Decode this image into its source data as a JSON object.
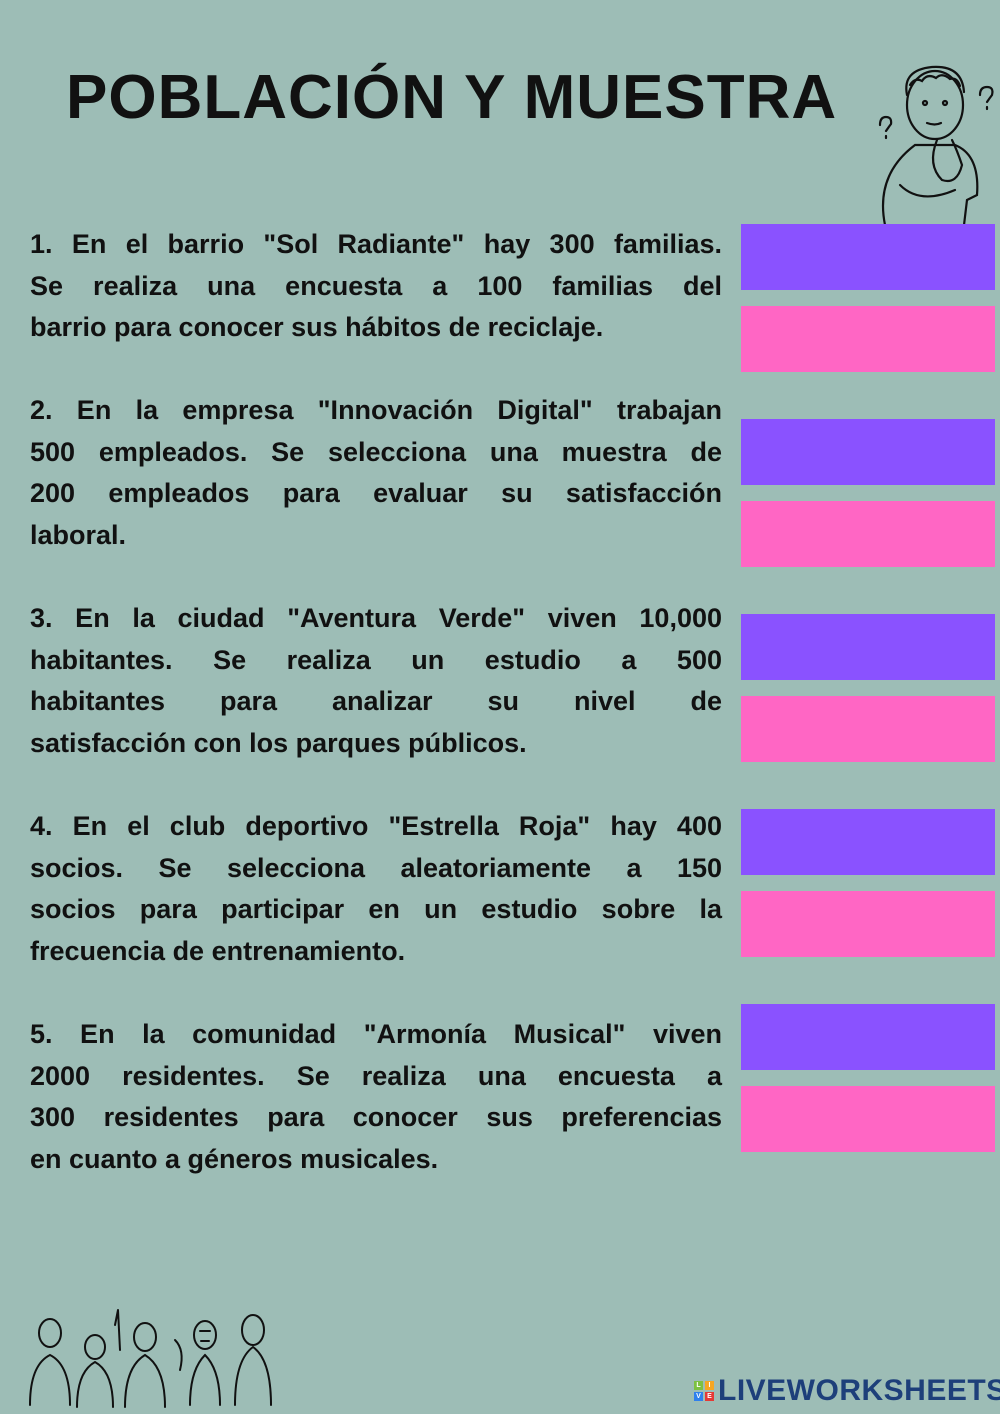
{
  "title": "POBLACIÓN Y MUESTRA",
  "questions": [
    {
      "lines": [
        "1. En el barrio \"Sol Radiante\" hay 300 familias.",
        "Se realiza una encuesta a 100 familias del",
        "barrio para conocer sus hábitos de reciclaje."
      ]
    },
    {
      "lines": [
        "2. En la empresa \"Innovación Digital\" trabajan",
        "500 empleados. Se selecciona una muestra de",
        "200 empleados para evaluar su satisfacción",
        "laboral."
      ]
    },
    {
      "lines": [
        "3. En la ciudad \"Aventura Verde\" viven 10,000",
        "habitantes. Se realiza un estudio a 500",
        "habitantes para analizar su nivel de",
        "satisfacción con los parques públicos."
      ]
    },
    {
      "lines": [
        "4. En el club deportivo \"Estrella Roja\" hay 400",
        "socios. Se selecciona aleatoriamente a 150",
        "socios para participar en un estudio sobre la",
        "frecuencia de entrenamiento."
      ]
    },
    {
      "lines": [
        "5. En la comunidad \"Armonía Musical\" viven",
        "2000 residentes. Se realiza una encuesta a",
        "300 residentes para conocer sus preferencias",
        "en cuanto a géneros musicales."
      ]
    }
  ],
  "colors": {
    "background": "#9dbdb6",
    "population_box": "#8a52ff",
    "sample_box": "#ff66c4",
    "logo": "#1d3f7a"
  },
  "logo": {
    "text": "LIVEWORKSHEETS",
    "badge": [
      "L",
      "I",
      "V",
      "E"
    ]
  }
}
